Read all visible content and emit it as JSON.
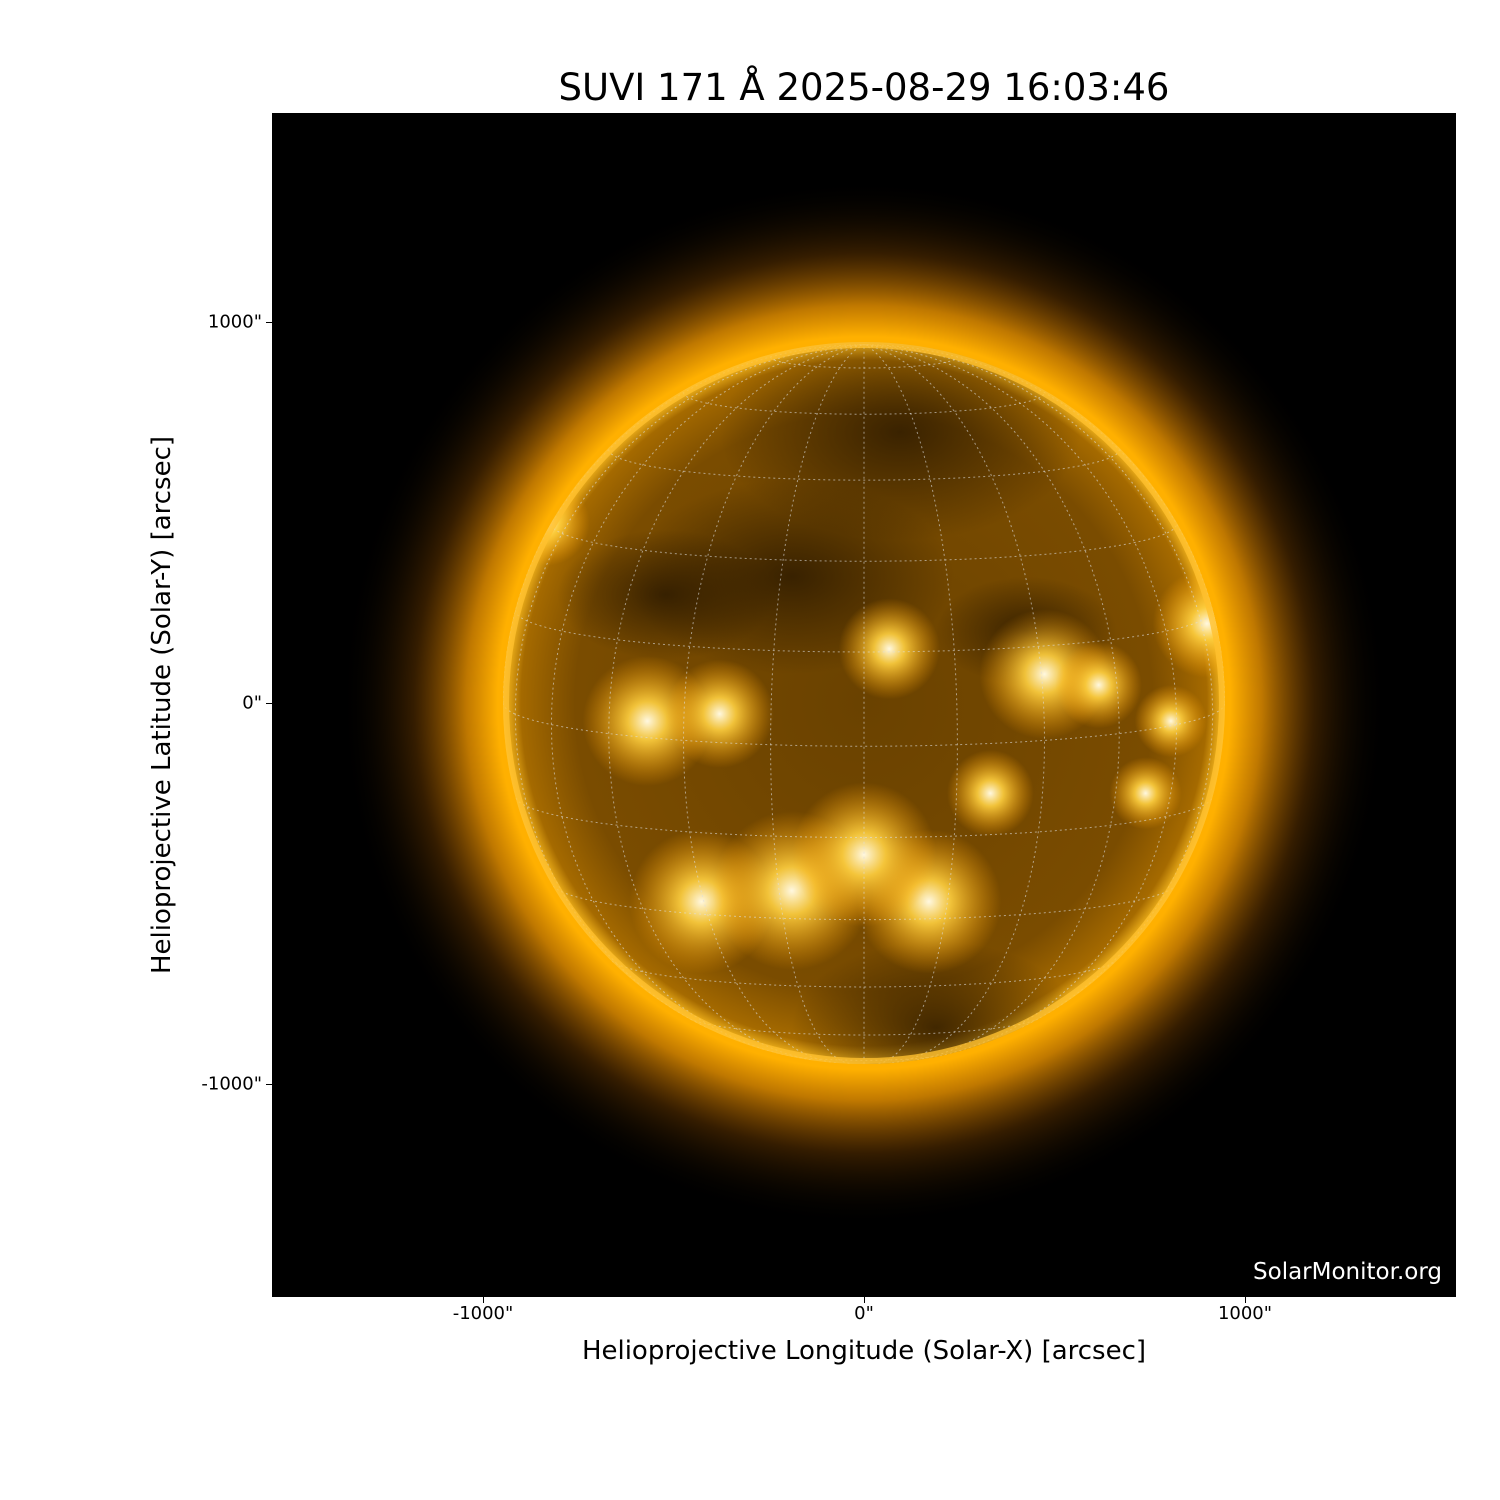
{
  "title": "SUVI 171 Å 2025-08-29 16:03:46",
  "watermark": "SolarMonitor.org",
  "axes": {
    "xlabel": "Helioprojective Longitude (Solar-X) [arcsec]",
    "ylabel": "Helioprojective Latitude (Solar-Y) [arcsec]",
    "xticks": [
      "-1000\"",
      "0\"",
      "1000\""
    ],
    "yticks": [
      "1000\"",
      "0\"",
      "-1000\""
    ],
    "xlim": [
      -1554,
      1554
    ],
    "ylim": [
      -1554,
      1554
    ]
  },
  "colors": {
    "sun": "#ffb000",
    "background": "#000000",
    "grid": "#dddddd"
  }
}
